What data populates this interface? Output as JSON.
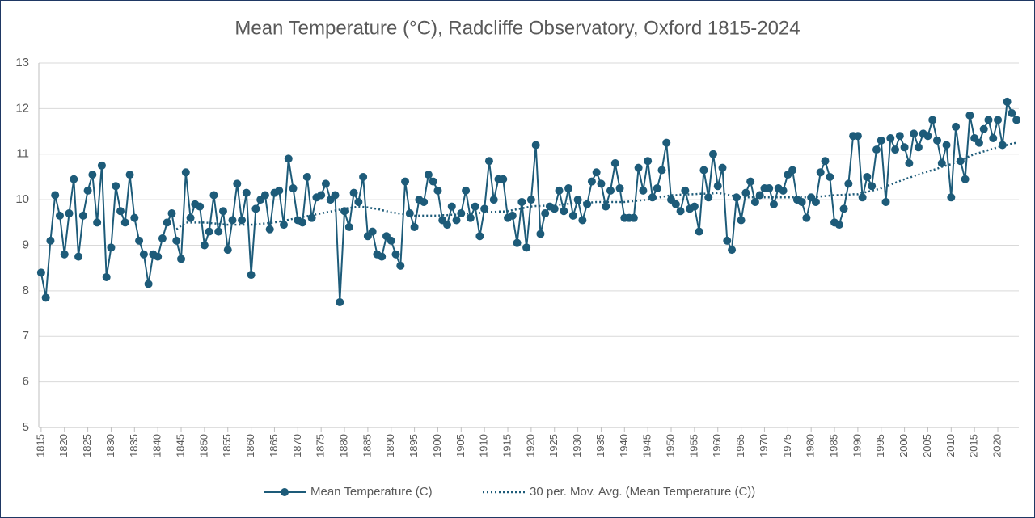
{
  "chart_data": {
    "type": "line",
    "title": "Mean Temperature (°C), Radcliffe Observatory, Oxford 1815-2024",
    "x": [
      1815,
      1816,
      1817,
      1818,
      1819,
      1820,
      1821,
      1822,
      1823,
      1824,
      1825,
      1826,
      1827,
      1828,
      1829,
      1830,
      1831,
      1832,
      1833,
      1834,
      1835,
      1836,
      1837,
      1838,
      1839,
      1840,
      1841,
      1842,
      1843,
      1844,
      1845,
      1846,
      1847,
      1848,
      1849,
      1850,
      1851,
      1852,
      1853,
      1854,
      1855,
      1856,
      1857,
      1858,
      1859,
      1860,
      1861,
      1862,
      1863,
      1864,
      1865,
      1866,
      1867,
      1868,
      1869,
      1870,
      1871,
      1872,
      1873,
      1874,
      1875,
      1876,
      1877,
      1878,
      1879,
      1880,
      1881,
      1882,
      1883,
      1884,
      1885,
      1886,
      1887,
      1888,
      1889,
      1890,
      1891,
      1892,
      1893,
      1894,
      1895,
      1896,
      1897,
      1898,
      1899,
      1900,
      1901,
      1902,
      1903,
      1904,
      1905,
      1906,
      1907,
      1908,
      1909,
      1910,
      1911,
      1912,
      1913,
      1914,
      1915,
      1916,
      1917,
      1918,
      1919,
      1920,
      1921,
      1922,
      1923,
      1924,
      1925,
      1926,
      1927,
      1928,
      1929,
      1930,
      1931,
      1932,
      1933,
      1934,
      1935,
      1936,
      1937,
      1938,
      1939,
      1940,
      1941,
      1942,
      1943,
      1944,
      1945,
      1946,
      1947,
      1948,
      1949,
      1950,
      1951,
      1952,
      1953,
      1954,
      1955,
      1956,
      1957,
      1958,
      1959,
      1960,
      1961,
      1962,
      1963,
      1964,
      1965,
      1966,
      1967,
      1968,
      1969,
      1970,
      1971,
      1972,
      1973,
      1974,
      1975,
      1976,
      1977,
      1978,
      1979,
      1980,
      1981,
      1982,
      1983,
      1984,
      1985,
      1986,
      1987,
      1988,
      1989,
      1990,
      1991,
      1992,
      1993,
      1994,
      1995,
      1996,
      1997,
      1998,
      1999,
      2000,
      2001,
      2002,
      2003,
      2004,
      2005,
      2006,
      2007,
      2008,
      2009,
      2010,
      2011,
      2012,
      2013,
      2014,
      2015,
      2016,
      2017,
      2018,
      2019,
      2020,
      2021,
      2022,
      2023,
      2024
    ],
    "series": [
      {
        "name": "Mean Temperature (C)",
        "color": "#1d5b79",
        "marker": true,
        "dash": "solid",
        "values": [
          8.4,
          7.85,
          9.1,
          10.1,
          9.65,
          8.8,
          9.7,
          10.45,
          8.75,
          9.65,
          10.2,
          10.55,
          9.5,
          10.75,
          8.3,
          8.95,
          10.3,
          9.75,
          9.5,
          10.55,
          9.6,
          9.1,
          8.8,
          8.15,
          8.8,
          8.75,
          9.15,
          9.5,
          9.7,
          9.1,
          8.7,
          10.6,
          9.6,
          9.9,
          9.85,
          9.0,
          9.3,
          10.1,
          9.3,
          9.75,
          8.9,
          9.55,
          10.35,
          9.55,
          10.15,
          8.35,
          9.8,
          10.0,
          10.1,
          9.35,
          10.15,
          10.2,
          9.45,
          10.9,
          10.25,
          9.55,
          9.5,
          10.5,
          9.6,
          10.05,
          10.1,
          10.35,
          10.0,
          10.1,
          7.75,
          9.75,
          9.4,
          10.15,
          9.95,
          10.5,
          9.2,
          9.3,
          8.8,
          8.75,
          9.2,
          9.1,
          8.8,
          8.55,
          10.4,
          9.7,
          9.4,
          10.0,
          9.95,
          10.55,
          10.4,
          10.2,
          9.55,
          9.45,
          9.85,
          9.55,
          9.7,
          10.2,
          9.6,
          9.85,
          9.2,
          9.8,
          10.85,
          10.0,
          10.45,
          10.45,
          9.6,
          9.65,
          9.05,
          9.95,
          8.95,
          10.0,
          11.2,
          9.25,
          9.7,
          9.85,
          9.8,
          10.2,
          9.75,
          10.25,
          9.65,
          10.0,
          9.55,
          9.9,
          10.4,
          10.6,
          10.35,
          9.85,
          10.2,
          10.8,
          10.25,
          9.6,
          9.6,
          9.6,
          10.7,
          10.2,
          10.85,
          10.05,
          10.25,
          10.65,
          11.25,
          10.0,
          9.9,
          9.75,
          10.2,
          9.8,
          9.85,
          9.3,
          10.65,
          10.05,
          11.0,
          10.3,
          10.7,
          9.1,
          8.9,
          10.05,
          9.55,
          10.15,
          10.4,
          9.95,
          10.1,
          10.25,
          10.25,
          9.9,
          10.25,
          10.2,
          10.55,
          10.65,
          10.0,
          9.95,
          9.6,
          10.05,
          9.95,
          10.6,
          10.85,
          10.5,
          9.5,
          9.45,
          9.8,
          10.35,
          11.4,
          11.4,
          10.05,
          10.5,
          10.3,
          11.1,
          11.3,
          9.95,
          11.35,
          11.1,
          11.4,
          11.15,
          10.8,
          11.45,
          11.15,
          11.45,
          11.4,
          11.75,
          11.3,
          10.8,
          11.2,
          10.05,
          11.6,
          10.85,
          10.45,
          11.85,
          11.35,
          11.25,
          11.55,
          11.75,
          11.35,
          11.75,
          11.2,
          12.15,
          11.9,
          11.75
        ]
      },
      {
        "name": "30 per. Mov. Avg. (Mean Temperature (C))",
        "color": "#1d5b79",
        "marker": false,
        "dash": "dotted",
        "values": [
          null,
          null,
          null,
          null,
          null,
          null,
          null,
          null,
          null,
          null,
          null,
          null,
          null,
          null,
          null,
          null,
          null,
          null,
          null,
          null,
          null,
          null,
          null,
          null,
          null,
          null,
          null,
          null,
          null,
          9.35,
          9.43,
          9.5,
          9.5,
          9.5,
          9.5,
          9.5,
          9.49,
          9.48,
          9.47,
          9.46,
          9.45,
          9.45,
          9.45,
          9.45,
          9.45,
          9.45,
          9.46,
          9.47,
          9.48,
          9.49,
          9.5,
          9.52,
          9.54,
          9.56,
          9.58,
          9.6,
          9.62,
          9.64,
          9.66,
          9.68,
          9.7,
          9.72,
          9.74,
          9.76,
          9.78,
          9.8,
          9.82,
          9.83,
          9.85,
          9.84,
          9.83,
          9.81,
          9.8,
          9.77,
          9.75,
          9.72,
          9.71,
          9.69,
          9.68,
          9.66,
          9.65,
          9.65,
          9.65,
          9.65,
          9.65,
          9.65,
          9.66,
          9.66,
          9.67,
          9.67,
          9.68,
          9.69,
          9.7,
          9.7,
          9.71,
          9.72,
          9.73,
          9.73,
          9.74,
          9.74,
          9.75,
          9.77,
          9.79,
          9.81,
          9.83,
          9.85,
          9.86,
          9.86,
          9.87,
          9.87,
          9.88,
          9.89,
          9.9,
          9.91,
          9.92,
          9.93,
          9.93,
          9.94,
          9.94,
          9.95,
          9.95,
          9.95,
          9.95,
          9.95,
          9.95,
          9.95,
          9.96,
          9.97,
          9.98,
          9.99,
          10.0,
          10.02,
          10.04,
          10.06,
          10.08,
          10.1,
          10.1,
          10.11,
          10.11,
          10.12,
          10.12,
          10.13,
          10.13,
          10.14,
          10.14,
          10.15,
          10.13,
          10.11,
          10.09,
          10.07,
          10.05,
          10.05,
          10.05,
          10.05,
          10.05,
          10.05,
          10.05,
          10.05,
          10.05,
          10.05,
          10.05,
          10.05,
          10.05,
          10.05,
          10.05,
          10.05,
          10.06,
          10.07,
          10.08,
          10.09,
          10.1,
          10.1,
          10.11,
          10.11,
          10.12,
          10.12,
          10.15,
          10.17,
          10.2,
          10.22,
          10.25,
          10.29,
          10.33,
          10.37,
          10.41,
          10.45,
          10.48,
          10.52,
          10.55,
          10.59,
          10.62,
          10.65,
          10.68,
          10.72,
          10.75,
          10.78,
          10.82,
          10.87,
          10.91,
          10.96,
          11.0,
          11.03,
          11.06,
          11.09,
          11.12,
          11.15,
          11.18,
          11.2,
          11.23,
          11.25
        ]
      }
    ],
    "xlim": [
      1814.5,
      2024.5
    ],
    "xticks": [
      1815,
      1820,
      1825,
      1830,
      1835,
      1840,
      1845,
      1850,
      1855,
      1860,
      1865,
      1870,
      1875,
      1880,
      1885,
      1890,
      1895,
      1900,
      1905,
      1910,
      1915,
      1920,
      1925,
      1930,
      1935,
      1940,
      1945,
      1950,
      1955,
      1960,
      1965,
      1970,
      1975,
      1980,
      1985,
      1990,
      1995,
      2000,
      2005,
      2010,
      2015,
      2020
    ],
    "ylim": [
      5,
      13
    ],
    "yticks": [
      5,
      6,
      7,
      8,
      9,
      10,
      11,
      12,
      13
    ],
    "grid": true,
    "legend": "bottom"
  }
}
